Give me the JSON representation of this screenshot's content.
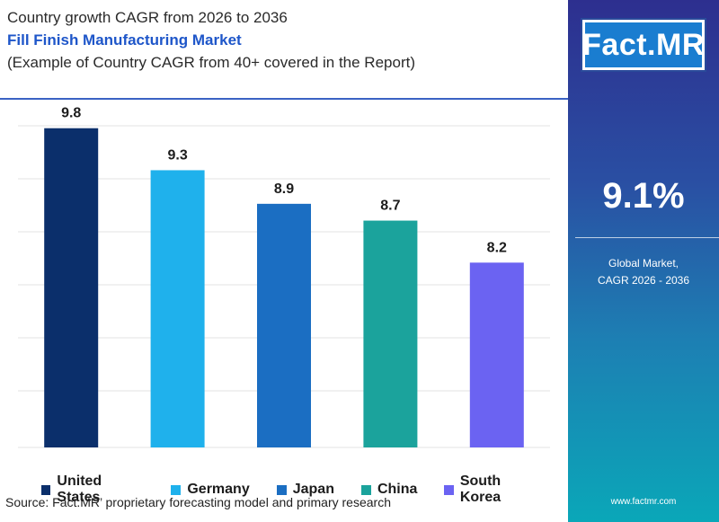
{
  "header": {
    "line1": "Country growth CAGR from 2026 to 2036",
    "line2": "Fill Finish Manufacturing Market",
    "line3": "(Example of Country CAGR from 40+ covered in the Report)"
  },
  "sidebar": {
    "logo_text": "Fact.MR",
    "cagr_value": "9.1%",
    "cagr_label_line1": "Global Market,",
    "cagr_label_line2": "CAGR 2026 - 2036",
    "website": "www.factmr.com"
  },
  "source": "Source: Fact.MR’ proprietary forecasting model and primary research",
  "chart_data": {
    "type": "bar",
    "categories": [
      "United States",
      "Germany",
      "Japan",
      "China",
      "South Korea"
    ],
    "values": [
      9.8,
      9.3,
      8.9,
      8.7,
      8.2
    ],
    "data_labels": [
      "9.8",
      "9.3",
      "8.9",
      "8.7",
      "8.2"
    ],
    "colors": [
      "#0b2f6b",
      "#1fb1ec",
      "#1b6ec2",
      "#1ba39c",
      "#6b63f2"
    ],
    "ylim": [
      6,
      10
    ],
    "grid": true,
    "legend": "bottom",
    "title": "",
    "xlabel": "",
    "ylabel": ""
  }
}
